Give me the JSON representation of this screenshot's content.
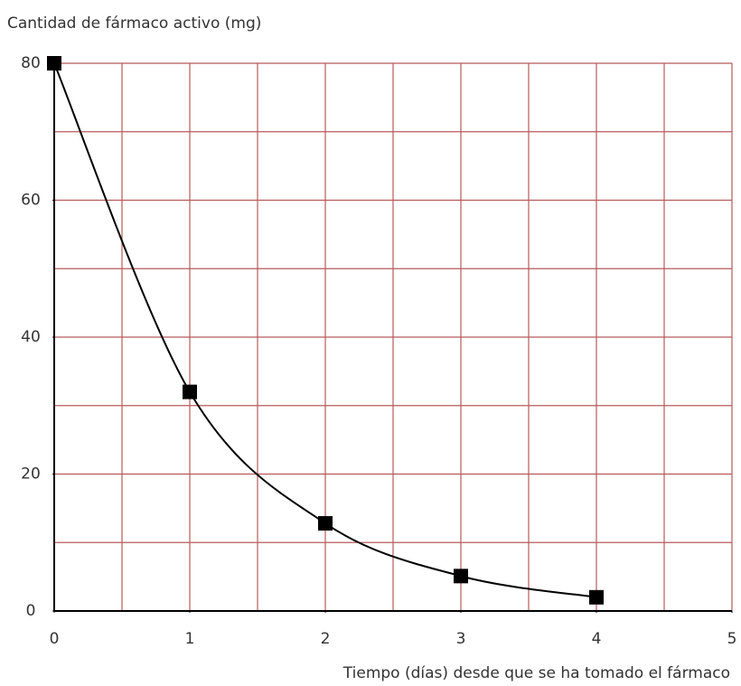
{
  "chart_data": {
    "type": "line",
    "y_label": "Cantidad de fármaco activo (mg)",
    "x_label": "Tiempo (días) desde que se ha tomado el fármaco",
    "x": [
      0,
      1,
      2,
      3,
      4
    ],
    "series": [
      {
        "color": "#000000",
        "values": [
          80,
          32,
          12.8,
          5.1,
          2.0
        ]
      }
    ],
    "xlim": [
      0,
      5
    ],
    "ylim": [
      0,
      80
    ],
    "xticks": [
      0,
      1,
      2,
      3,
      4,
      5
    ],
    "yticks": [
      0,
      20,
      40,
      60,
      80
    ],
    "xgrid": [
      0.5,
      1,
      1.5,
      2,
      2.5,
      3,
      3.5,
      4,
      4.5,
      5
    ],
    "ygrid": [
      10,
      20,
      30,
      40,
      50,
      60,
      70,
      80
    ],
    "grid_color": "#b85a5a",
    "smooth": true,
    "marker": "square"
  }
}
